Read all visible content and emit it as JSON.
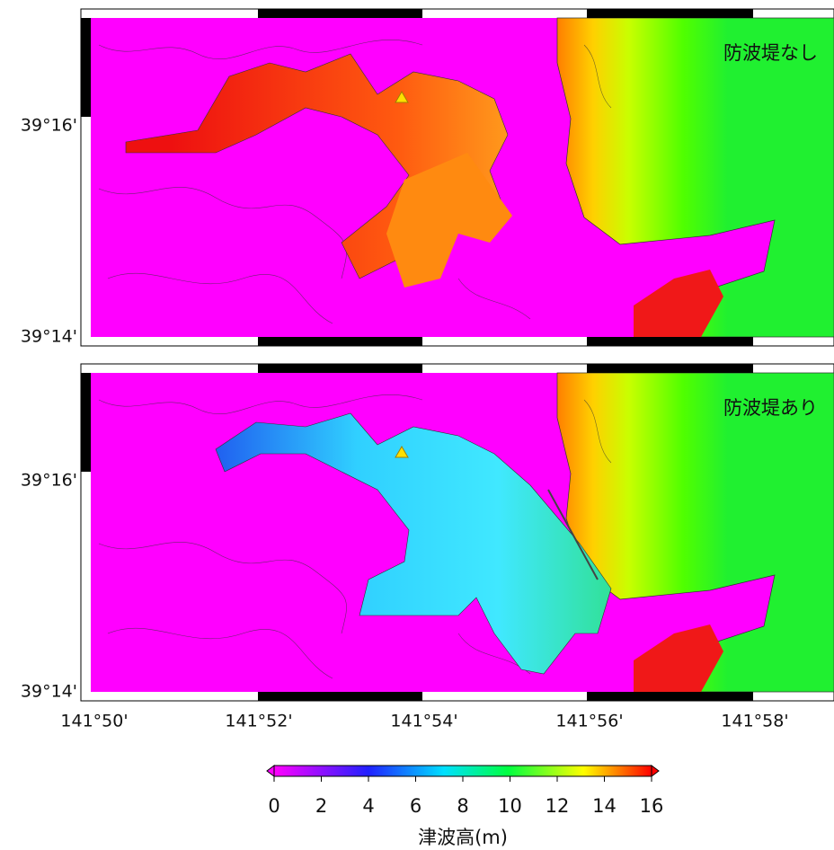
{
  "panels": [
    {
      "label": "防波堤なし",
      "yticks": [
        "39°16'",
        "39°14'"
      ]
    },
    {
      "label": "防波堤あり",
      "yticks": [
        "39°16'",
        "39°14'"
      ]
    }
  ],
  "xticks": [
    "141°50'",
    "141°52'",
    "141°54'",
    "141°56'",
    "141°58'"
  ],
  "colorbar": {
    "range": [
      0,
      16
    ],
    "ticks": [
      0,
      2,
      4,
      6,
      8,
      10,
      12,
      14,
      16
    ],
    "label": "津波高(m)"
  }
}
